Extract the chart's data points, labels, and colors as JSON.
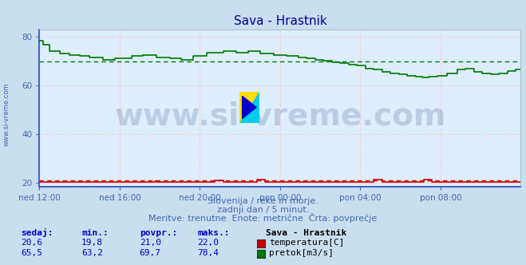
{
  "title": "Sava - Hrastnik",
  "bg_color": "#c8dff0",
  "plot_bg_color": "#ddeeff",
  "grid_color_h": "#ffbbbb",
  "grid_color_v": "#ffcccc",
  "border_color": "#4466cc",
  "x_labels": [
    "ned 12:00",
    "ned 16:00",
    "ned 20:00",
    "pon 00:00",
    "pon 04:00",
    "pon 08:00"
  ],
  "x_ticks_pos": [
    0,
    48,
    96,
    144,
    192,
    240
  ],
  "total_points": 289,
  "ylim": [
    18.5,
    83
  ],
  "yticks": [
    20,
    40,
    60,
    80
  ],
  "temp_color": "#cc0000",
  "flow_color": "#007700",
  "avg_temp": 21.0,
  "avg_flow": 69.7,
  "watermark_text": "www.si-vreme.com",
  "watermark_color": "#1a3a6e",
  "watermark_alpha": 0.18,
  "watermark_fontsize": 28,
  "subtitle1": "Slovenija / reke in morje.",
  "subtitle2": "zadnji dan / 5 minut.",
  "subtitle3": "Meritve: trenutne  Enote: metrične  Črta: povprečje",
  "subtitle_color": "#4466aa",
  "table_headers": [
    "sedaj:",
    "min.:",
    "povpr.:",
    "maks.:"
  ],
  "temp_row": [
    "20,6",
    "19,8",
    "21,0",
    "22,0"
  ],
  "flow_row": [
    "65,5",
    "63,2",
    "69,7",
    "78,4"
  ],
  "legend_title": "Sava - Hrastnik",
  "legend_temp": "temperatura[C]",
  "legend_flow": "pretok[m3/s]",
  "left_label": "www.si-vreme.com",
  "left_label_color": "#4466aa",
  "title_color": "#000099",
  "tick_color": "#4466aa",
  "table_header_color": "#0000cc",
  "table_val_color": "#0000cc"
}
